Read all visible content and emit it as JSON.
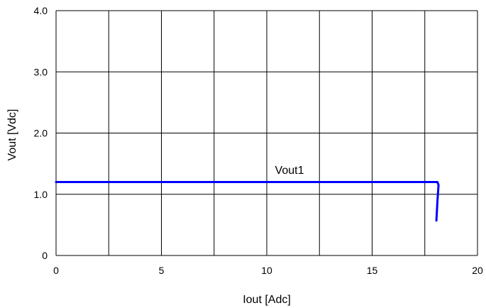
{
  "chart_data": {
    "type": "line",
    "title": "",
    "xlabel": "Iout [Adc]",
    "ylabel": "Vout [Vdc]",
    "xlim": [
      0,
      20
    ],
    "ylim": [
      0,
      4
    ],
    "x_ticks": [
      0,
      5,
      10,
      15,
      20
    ],
    "x_tick_labels": [
      "0",
      "5",
      "10",
      "15",
      "20"
    ],
    "y_ticks": [
      0,
      1,
      2,
      3,
      4
    ],
    "y_tick_labels": [
      "0",
      "1.0",
      "2.0",
      "3.0",
      "4.0"
    ],
    "x_grid_step": 2.5,
    "y_grid_step": 1,
    "grid": true,
    "series": [
      {
        "name": "Vout1",
        "color": "#0000ff",
        "x": [
          0,
          18.1,
          18.15,
          18.1,
          18.05
        ],
        "y": [
          1.2,
          1.2,
          1.15,
          0.9,
          0.57
        ]
      }
    ]
  }
}
